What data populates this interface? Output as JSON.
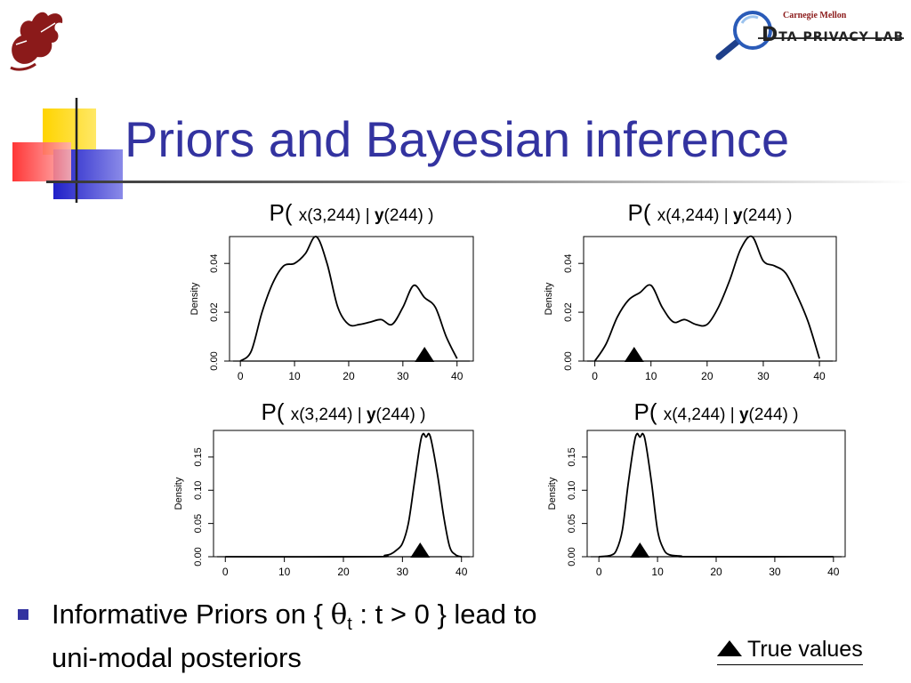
{
  "header": {
    "left_logo_icon": "dragon-logo-icon",
    "right_logo_icon": "magnifier-logo-icon",
    "org_name": "Carnegie Mellon",
    "lab_name": "TA PRIVACY LAB",
    "lab_initial": "D"
  },
  "title": "Priors and Bayesian inference",
  "body": {
    "line1_pre": "Informative Priors on { ",
    "theta": "θ",
    "theta_sub": "t",
    "line1_post": " : t > 0 } lead to",
    "line2": "uni-modal posteriors"
  },
  "legend": {
    "marker_icon": "triangle-marker-icon",
    "label": "True values"
  },
  "chart_data": [
    {
      "type": "line",
      "title": "P( x(3,244) | y(244) )",
      "title_parts": [
        "P(",
        "x(3,244) | ",
        "y",
        "(244) )"
      ],
      "xlabel": "",
      "ylabel": "Density",
      "xlim": [
        -2,
        43
      ],
      "ylim": [
        0,
        0.051
      ],
      "xticks": [
        0,
        10,
        20,
        30,
        40
      ],
      "yticks": [
        0.0,
        0.02,
        0.04
      ],
      "ytick_labels": [
        "0.00",
        "0.02",
        "0.04"
      ],
      "true_value": 34,
      "x": [
        0,
        2,
        4,
        6,
        8,
        10,
        12,
        14,
        16,
        18,
        20,
        22,
        24,
        26,
        28,
        30,
        32,
        34,
        36,
        38,
        40
      ],
      "y": [
        0.0,
        0.004,
        0.02,
        0.032,
        0.039,
        0.04,
        0.044,
        0.051,
        0.04,
        0.022,
        0.015,
        0.015,
        0.016,
        0.017,
        0.015,
        0.022,
        0.031,
        0.026,
        0.022,
        0.01,
        0.001
      ]
    },
    {
      "type": "line",
      "title": "P( x(4,244) | y(244) )",
      "title_parts": [
        "P(",
        "x(4,244) | ",
        "y",
        "(244) )"
      ],
      "xlabel": "",
      "ylabel": "Density",
      "xlim": [
        -2,
        43
      ],
      "ylim": [
        0,
        0.051
      ],
      "xticks": [
        0,
        10,
        20,
        30,
        40
      ],
      "yticks": [
        0.0,
        0.02,
        0.04
      ],
      "ytick_labels": [
        "0.00",
        "0.02",
        "0.04"
      ],
      "true_value": 7,
      "x": [
        0,
        2,
        4,
        6,
        8,
        10,
        12,
        14,
        16,
        18,
        20,
        22,
        24,
        26,
        28,
        30,
        32,
        34,
        36,
        38,
        40
      ],
      "y": [
        0.0,
        0.007,
        0.018,
        0.025,
        0.028,
        0.031,
        0.022,
        0.016,
        0.017,
        0.015,
        0.015,
        0.022,
        0.033,
        0.046,
        0.051,
        0.041,
        0.039,
        0.036,
        0.027,
        0.016,
        0.001
      ]
    },
    {
      "type": "line",
      "title": "P( x(3,244) | y(244) )",
      "title_parts": [
        "P(",
        "x(3,244) | ",
        "y",
        "(244) )"
      ],
      "xlabel": "",
      "ylabel": "Density",
      "xlim": [
        -2,
        42
      ],
      "ylim": [
        0,
        0.19
      ],
      "xticks": [
        0,
        10,
        20,
        30,
        40
      ],
      "yticks": [
        0.0,
        0.05,
        0.1,
        0.15
      ],
      "ytick_labels": [
        "0.00",
        "0.05",
        "0.10",
        "0.15"
      ],
      "true_value": 33,
      "x": [
        0,
        25,
        27,
        28,
        29,
        30,
        31,
        32,
        33,
        33.5,
        34,
        34.5,
        35,
        36,
        37,
        38,
        39,
        40
      ],
      "y": [
        0.0,
        0.0,
        0.002,
        0.004,
        0.01,
        0.02,
        0.05,
        0.11,
        0.17,
        0.185,
        0.18,
        0.185,
        0.17,
        0.12,
        0.06,
        0.015,
        0.003,
        0.0
      ]
    },
    {
      "type": "line",
      "title": "P( x(4,244) | y(244) )",
      "title_parts": [
        "P(",
        "x(4,244) | ",
        "y",
        "(244) )"
      ],
      "xlabel": "",
      "ylabel": "Density",
      "xlim": [
        -2,
        42
      ],
      "ylim": [
        0,
        0.19
      ],
      "xticks": [
        0,
        10,
        20,
        30,
        40
      ],
      "yticks": [
        0.0,
        0.05,
        0.1,
        0.15
      ],
      "ytick_labels": [
        "0.00",
        "0.05",
        "0.10",
        "0.15"
      ],
      "true_value": 7,
      "x": [
        0,
        2,
        3,
        4,
        5,
        6,
        6.5,
        7,
        7.5,
        8,
        9,
        10,
        11,
        12,
        14,
        16,
        40
      ],
      "y": [
        0.0,
        0.002,
        0.01,
        0.04,
        0.11,
        0.17,
        0.185,
        0.18,
        0.185,
        0.17,
        0.11,
        0.04,
        0.012,
        0.003,
        0.001,
        0.0,
        0.0
      ]
    }
  ]
}
